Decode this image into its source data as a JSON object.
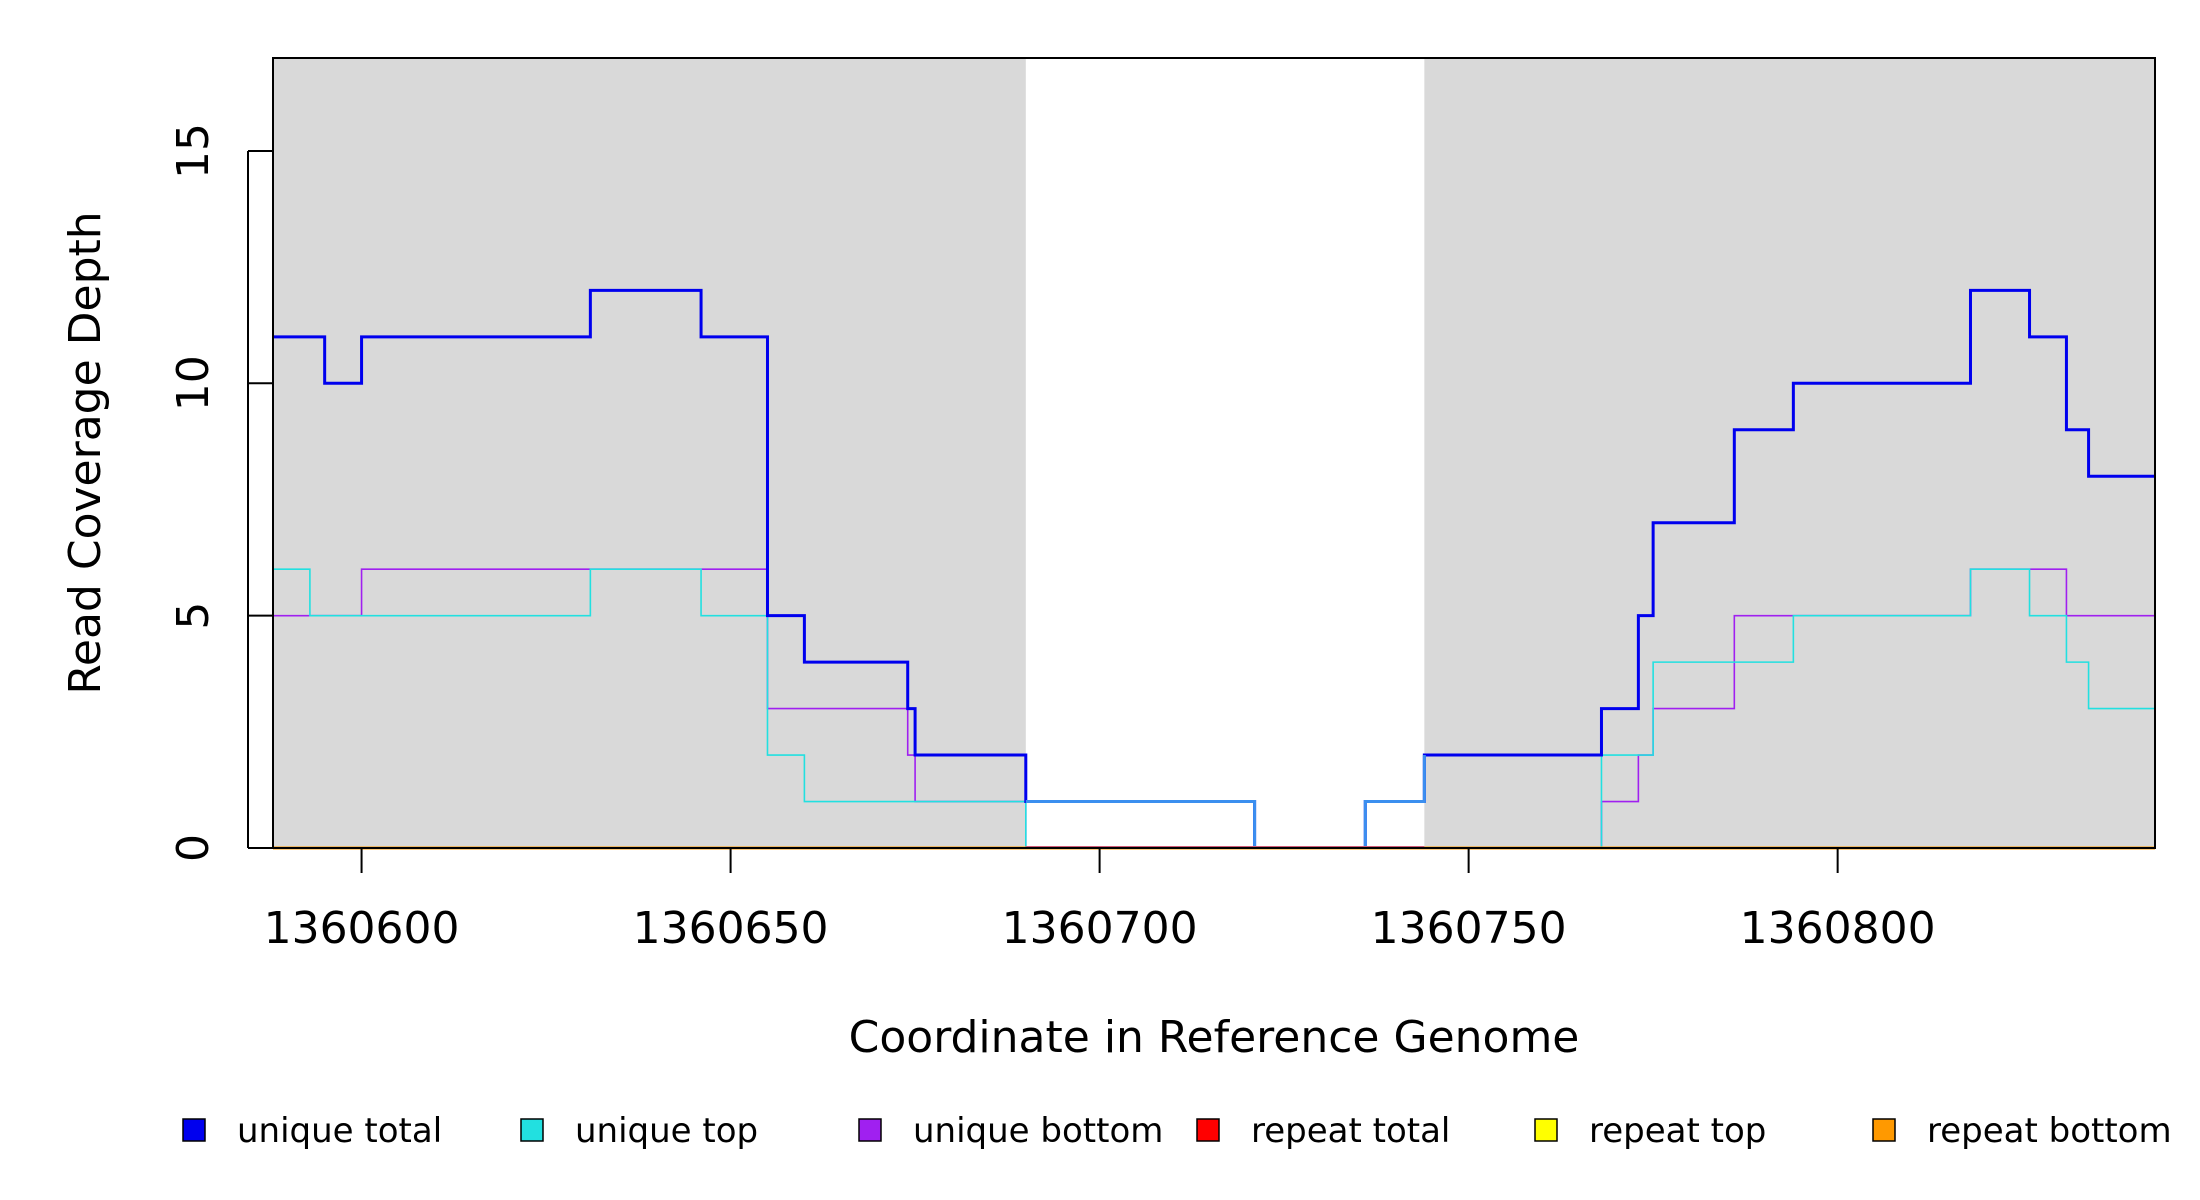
{
  "chart_data": {
    "type": "line",
    "step": true,
    "xlabel": "Coordinate in Reference Genome",
    "ylabel": "Read Coverage Depth",
    "xlim": [
      1360588,
      1360843
    ],
    "ylim": [
      0,
      17
    ],
    "x_ticks": [
      1360600,
      1360650,
      1360700,
      1360750,
      1360800
    ],
    "y_ticks": [
      0,
      5,
      10,
      15
    ],
    "shaded_regions": [
      {
        "x0": 1360588,
        "x1": 1360690,
        "color": "#d9d9d9"
      },
      {
        "x0": 1360744,
        "x1": 1360843,
        "color": "#d9d9d9"
      }
    ],
    "series": [
      {
        "name": "unique total",
        "color": "#0000ee",
        "width": 3,
        "points": [
          [
            1360588,
            11
          ],
          [
            1360595,
            10
          ],
          [
            1360600,
            11
          ],
          [
            1360631,
            12
          ],
          [
            1360646,
            11
          ],
          [
            1360655,
            5
          ],
          [
            1360660,
            4
          ],
          [
            1360674,
            3
          ],
          [
            1360675,
            2
          ],
          [
            1360690,
            1
          ],
          [
            1360721,
            0
          ],
          [
            1360736,
            1
          ],
          [
            1360744,
            2
          ],
          [
            1360768,
            3
          ],
          [
            1360773,
            5
          ],
          [
            1360775,
            7
          ],
          [
            1360786,
            9
          ],
          [
            1360794,
            10
          ],
          [
            1360818,
            12
          ],
          [
            1360826,
            11
          ],
          [
            1360831,
            9
          ],
          [
            1360834,
            8
          ],
          [
            1360843,
            8
          ]
        ]
      },
      {
        "name": "unique top",
        "color": "#22e0e0",
        "width": 1.6,
        "points": [
          [
            1360588,
            6
          ],
          [
            1360593,
            5
          ],
          [
            1360631,
            6
          ],
          [
            1360646,
            5
          ],
          [
            1360655,
            2
          ],
          [
            1360660,
            1
          ],
          [
            1360690,
            0
          ],
          [
            1360768,
            2
          ],
          [
            1360775,
            4
          ],
          [
            1360794,
            5
          ],
          [
            1360818,
            6
          ],
          [
            1360826,
            5
          ],
          [
            1360831,
            4
          ],
          [
            1360834,
            3
          ],
          [
            1360843,
            3
          ]
        ]
      },
      {
        "name": "unique bottom",
        "color": "#a020f0",
        "width": 1.6,
        "points": [
          [
            1360588,
            5
          ],
          [
            1360600,
            6
          ],
          [
            1360655,
            3
          ],
          [
            1360674,
            2
          ],
          [
            1360675,
            1
          ],
          [
            1360690,
            0
          ],
          [
            1360768,
            1
          ],
          [
            1360773,
            2
          ],
          [
            1360775,
            3
          ],
          [
            1360786,
            5
          ],
          [
            1360818,
            6
          ],
          [
            1360831,
            5
          ],
          [
            1360843,
            5
          ]
        ]
      },
      {
        "name": "repeat total",
        "color": "#ff0000",
        "width": 2,
        "points": [
          [
            1360588,
            0
          ],
          [
            1360843,
            0
          ]
        ]
      },
      {
        "name": "repeat top",
        "color": "#ffff00",
        "width": 2,
        "points": [
          [
            1360588,
            0
          ],
          [
            1360843,
            0
          ]
        ]
      },
      {
        "name": "repeat bottom",
        "color": "#ff9900",
        "width": 3,
        "points": [
          [
            1360588,
            0
          ],
          [
            1360843,
            0
          ]
        ]
      }
    ],
    "overlay_segments": [
      {
        "description_color": "#3b8fef",
        "color": "#3b8fef",
        "x_from": 1360690,
        "x_to": 1360744,
        "series_ref": "unique total"
      }
    ],
    "legend": {
      "placement": "bottom",
      "entries": [
        {
          "label": "unique total",
          "color": "#0000ee"
        },
        {
          "label": "unique top",
          "color": "#22e0e0"
        },
        {
          "label": "unique bottom",
          "color": "#a020f0"
        },
        {
          "label": "repeat total",
          "color": "#ff0000"
        },
        {
          "label": "repeat top",
          "color": "#ffff00"
        },
        {
          "label": "repeat bottom",
          "color": "#ff9900"
        }
      ]
    }
  }
}
